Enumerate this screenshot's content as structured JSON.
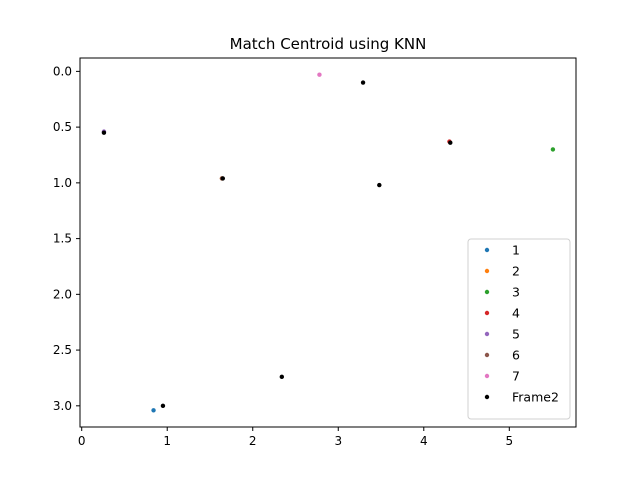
{
  "chart_data": {
    "type": "scatter",
    "title": "Match Centroid using KNN",
    "xlabel": "",
    "ylabel": "",
    "xlim": [
      -0.02,
      5.78
    ],
    "ylim": [
      3.19,
      -0.12
    ],
    "y_inverted": true,
    "grid": false,
    "legend_position": "lower-right",
    "x_ticks": [
      {
        "value": 0,
        "label": "0"
      },
      {
        "value": 1,
        "label": "1"
      },
      {
        "value": 2,
        "label": "2"
      },
      {
        "value": 3,
        "label": "3"
      },
      {
        "value": 4,
        "label": "4"
      },
      {
        "value": 5,
        "label": "5"
      }
    ],
    "y_ticks": [
      {
        "value": 0.0,
        "label": "0.0"
      },
      {
        "value": 0.5,
        "label": "0.5"
      },
      {
        "value": 1.0,
        "label": "1.0"
      },
      {
        "value": 1.5,
        "label": "1.5"
      },
      {
        "value": 2.0,
        "label": "2.0"
      },
      {
        "value": 2.5,
        "label": "2.5"
      },
      {
        "value": 3.0,
        "label": "3.0"
      }
    ],
    "series": [
      {
        "name": "1",
        "color": "#1f77b4",
        "points": [
          {
            "x": 0.84,
            "y": 3.04
          }
        ]
      },
      {
        "name": "2",
        "color": "#ff7f0e",
        "points": [
          {
            "x": 1.64,
            "y": 0.96
          }
        ]
      },
      {
        "name": "3",
        "color": "#2ca02c",
        "points": [
          {
            "x": 5.51,
            "y": 0.7
          }
        ]
      },
      {
        "name": "4",
        "color": "#d62728",
        "points": [
          {
            "x": 4.3,
            "y": 0.63
          }
        ]
      },
      {
        "name": "5",
        "color": "#9467bd",
        "points": [
          {
            "x": 0.26,
            "y": 0.54
          }
        ]
      },
      {
        "name": "6",
        "color": "#8c564b",
        "points": [
          {
            "x": 1.64,
            "y": 0.96
          }
        ]
      },
      {
        "name": "7",
        "color": "#e377c2",
        "points": [
          {
            "x": 2.78,
            "y": 0.03
          }
        ]
      },
      {
        "name": "Frame2",
        "color": "#000000",
        "points": [
          {
            "x": 3.29,
            "y": 0.1
          },
          {
            "x": 0.26,
            "y": 0.55
          },
          {
            "x": 4.31,
            "y": 0.64
          },
          {
            "x": 1.65,
            "y": 0.96
          },
          {
            "x": 3.48,
            "y": 1.02
          },
          {
            "x": 2.34,
            "y": 2.74
          },
          {
            "x": 0.95,
            "y": 3.0
          }
        ]
      }
    ]
  }
}
